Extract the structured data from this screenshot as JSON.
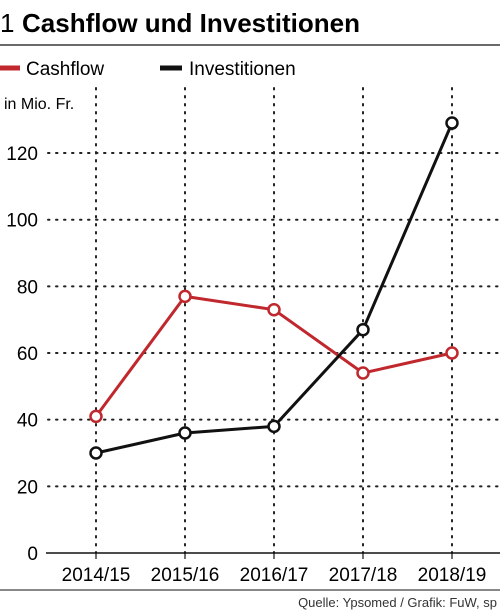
{
  "header": {
    "number": "1",
    "title": "Cashflow und Investitionen"
  },
  "colors": {
    "cashflow": "#c0282d",
    "investitionen": "#111111",
    "grid": "#222222"
  },
  "footer": {
    "source": "Quelle: Ypsomed / Grafik: FuW, sp"
  },
  "chart_data": {
    "type": "line",
    "ylabel": "in Mio. Fr.",
    "categories": [
      "2014/15",
      "2015/16",
      "2016/17",
      "2017/18",
      "2018/19"
    ],
    "ylim": [
      0,
      130
    ],
    "yticks": [
      0,
      20,
      40,
      60,
      80,
      100,
      120
    ],
    "grid": true,
    "legend_position": "top-left",
    "series": [
      {
        "name": "Cashflow",
        "color": "#c0282d",
        "values": [
          41,
          77,
          73,
          54,
          60
        ]
      },
      {
        "name": "Investitionen",
        "color": "#111111",
        "values": [
          30,
          36,
          38,
          67,
          129
        ]
      }
    ]
  }
}
